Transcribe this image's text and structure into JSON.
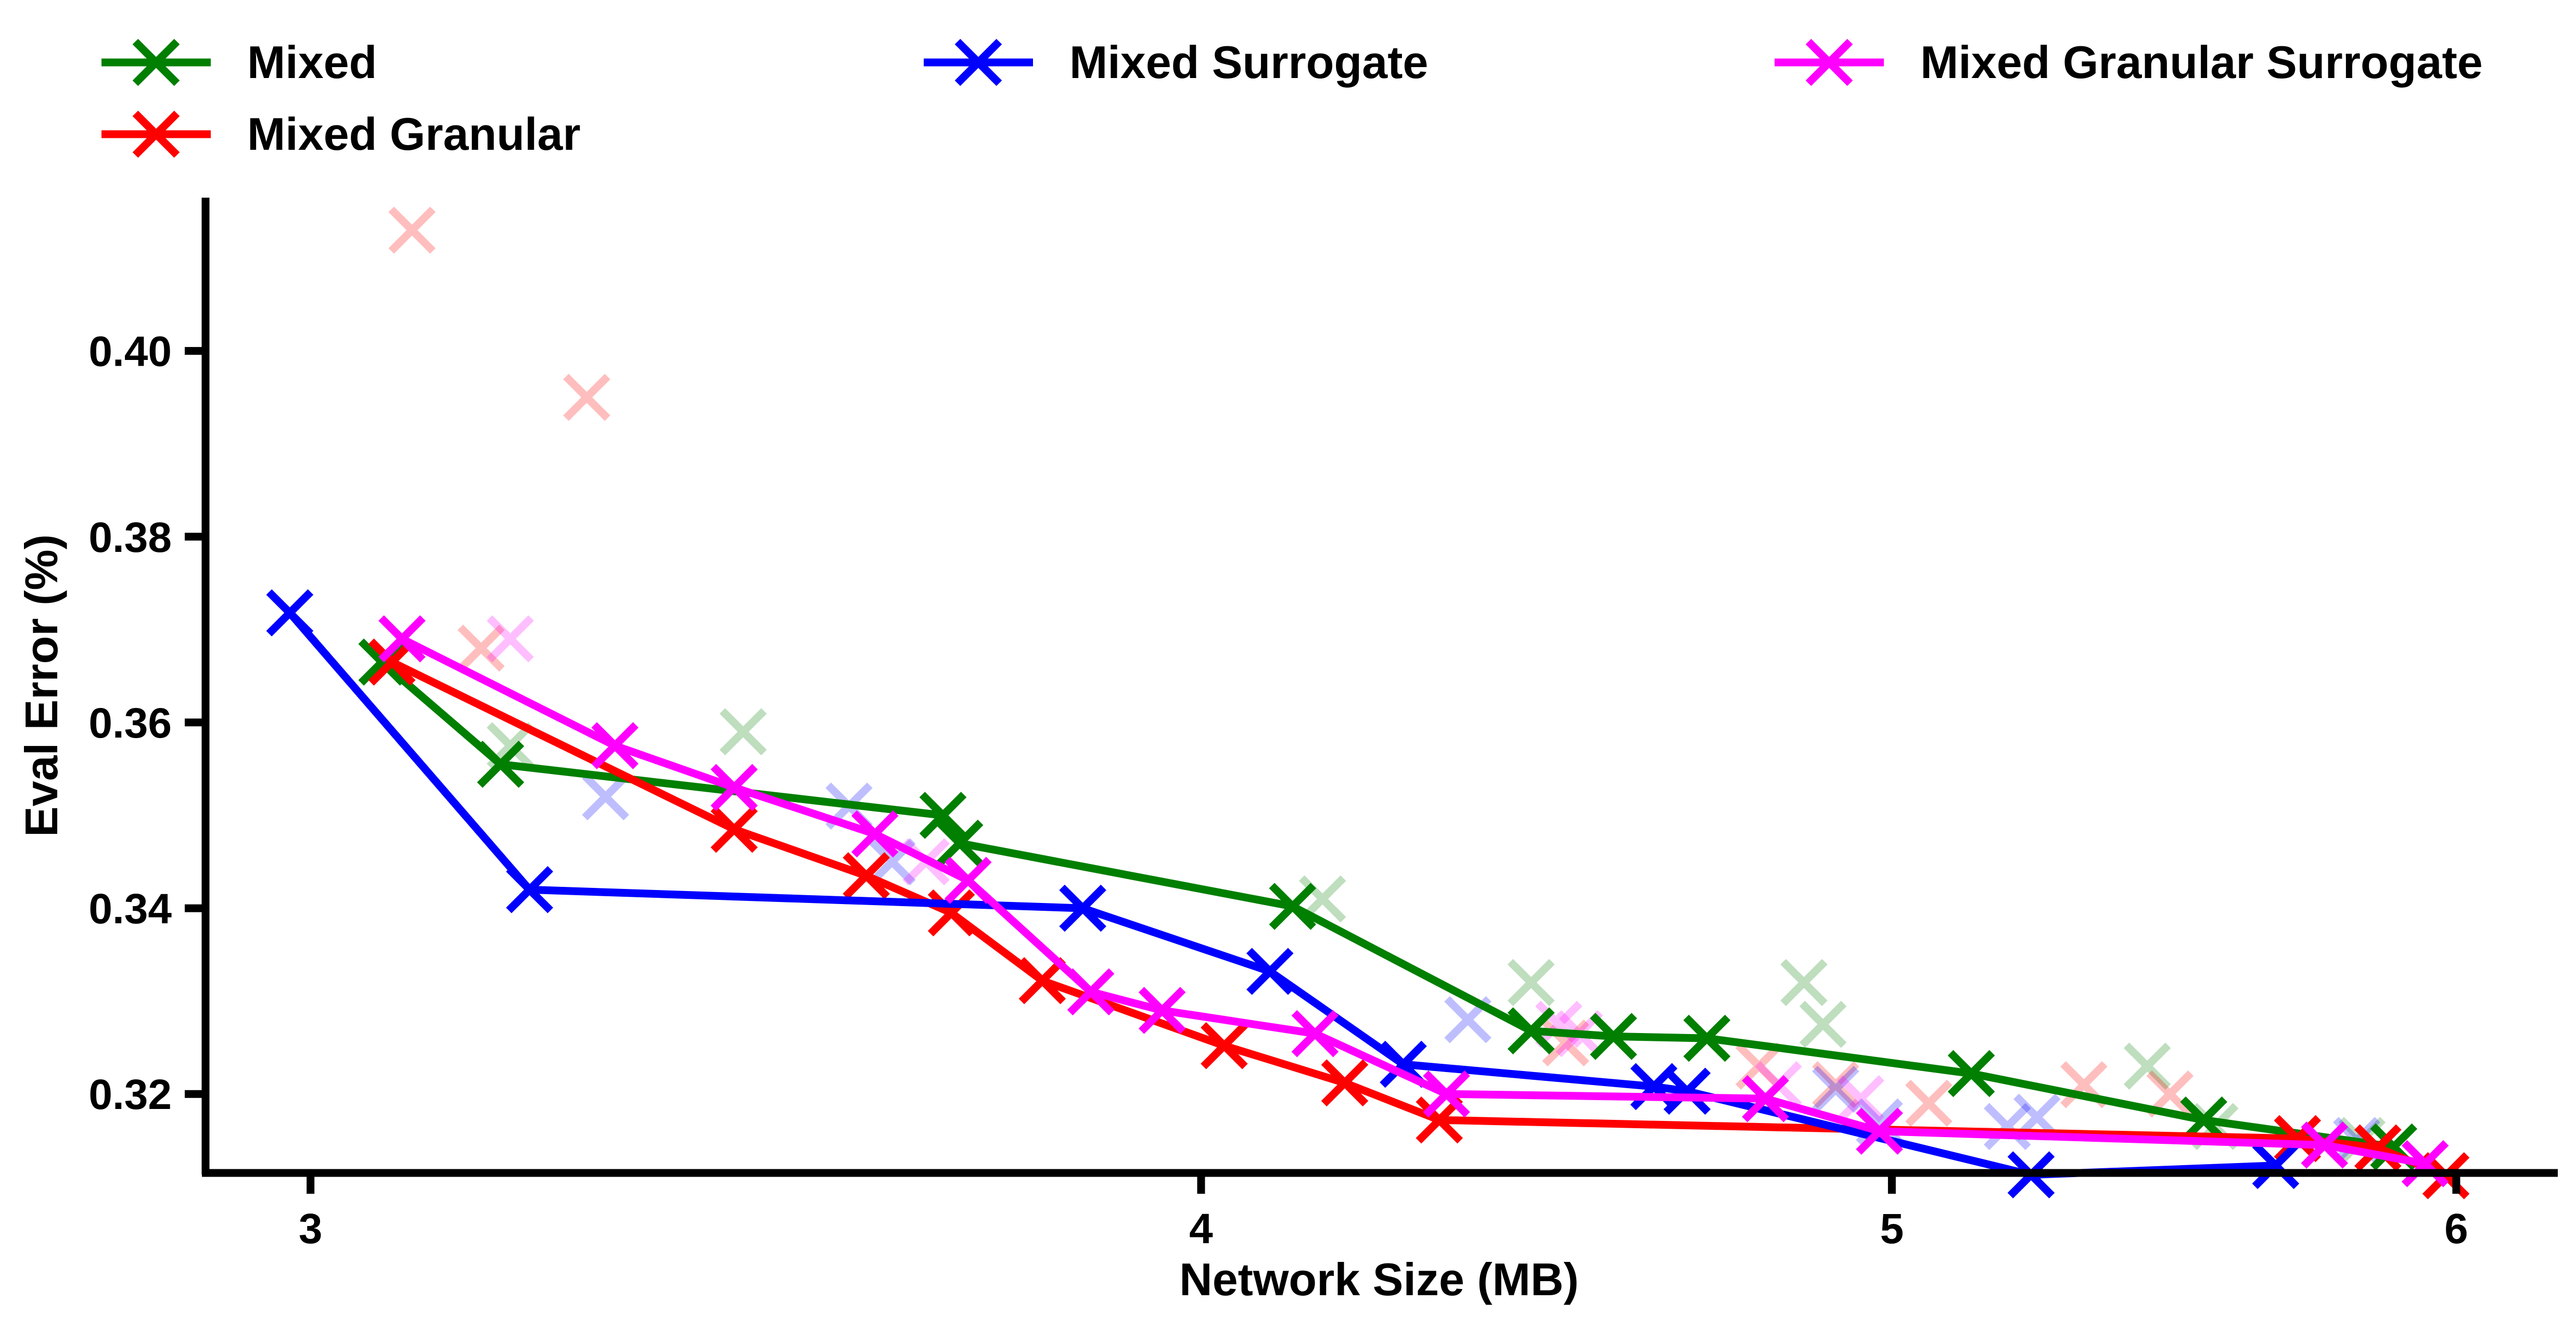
{
  "chart_data": {
    "type": "line",
    "title": "",
    "xlabel": "Network Size (MB)",
    "ylabel": "Eval Error (%)",
    "x_axis_scale": "log",
    "xlim": [
      2.9,
      6.2
    ],
    "ylim": [
      0.3115,
      0.4165
    ],
    "xticks": [
      3,
      4,
      5,
      6
    ],
    "xtick_labels": [
      "3",
      "4",
      "5",
      "6"
    ],
    "yticks": [
      0.32,
      0.34,
      0.36,
      0.38,
      0.4
    ],
    "ytick_labels": [
      "0.32",
      "0.34",
      "0.36",
      "0.38",
      "0.40"
    ],
    "grid": false,
    "legend_position": "top",
    "series": [
      {
        "name": "Mixed",
        "color": "#007f00",
        "x": [
          3.07,
          3.19,
          3.68,
          3.7,
          4.12,
          4.45,
          4.57,
          4.71,
          5.13,
          5.53,
          5.88
        ],
        "y": [
          0.3665,
          0.3555,
          0.35,
          0.347,
          0.3402,
          0.3268,
          0.3262,
          0.326,
          0.3222,
          0.3172,
          0.3143
        ]
      },
      {
        "name": "Mixed Granular",
        "color": "#ff0000",
        "x": [
          3.08,
          3.44,
          3.59,
          3.69,
          3.8,
          4.03,
          4.19,
          4.32,
          5.7,
          5.85,
          5.98
        ],
        "y": [
          0.3665,
          0.3485,
          0.3435,
          0.3395,
          0.3322,
          0.3252,
          0.3212,
          0.3172,
          0.3152,
          0.3142,
          0.3112
        ]
      },
      {
        "name": "Mixed Surrogate",
        "color": "#0000ff",
        "x": [
          2.98,
          3.22,
          3.85,
          4.09,
          4.27,
          4.63,
          4.68,
          5.23,
          5.66
        ],
        "y": [
          0.3718,
          0.342,
          0.34,
          0.3332,
          0.3232,
          0.3208,
          0.3203,
          0.3113,
          0.3123
        ]
      },
      {
        "name": "Mixed Granular Surrogate",
        "color": "#ff00ff",
        "x": [
          3.09,
          3.31,
          3.44,
          3.6,
          3.71,
          3.86,
          3.95,
          4.15,
          4.33,
          4.8,
          4.98,
          5.75,
          5.94
        ],
        "y": [
          0.369,
          0.3575,
          0.353,
          0.348,
          0.343,
          0.331,
          0.329,
          0.3265,
          0.32,
          0.3195,
          0.316,
          0.3145,
          0.3125
        ]
      }
    ],
    "faded_points": [
      {
        "series": "Mixed",
        "x": [
          3.2,
          3.45,
          4.16,
          4.45,
          4.86,
          4.89,
          5.43,
          5.55,
          5.82
        ],
        "y": [
          0.3575,
          0.359,
          0.341,
          0.332,
          0.332,
          0.3275,
          0.323,
          0.3165,
          0.315
        ]
      },
      {
        "series": "Mixed Granular",
        "x": [
          3.1,
          3.17,
          3.28,
          4.5,
          4.79,
          4.91,
          5.06,
          5.32,
          5.47
        ],
        "y": [
          0.413,
          0.368,
          0.395,
          0.3255,
          0.323,
          0.321,
          0.319,
          0.321,
          0.32
        ]
      },
      {
        "series": "Mixed Surrogate",
        "x": [
          3.3,
          3.57,
          3.62,
          4.36,
          4.91,
          4.98,
          5.19,
          5.24,
          5.81
        ],
        "y": [
          0.352,
          0.351,
          0.345,
          0.328,
          0.3205,
          0.317,
          0.3165,
          0.3175,
          0.315
        ]
      },
      {
        "series": "Mixed Granular Surrogate",
        "x": [
          3.2,
          3.66,
          4.49,
          4.52,
          4.82,
          4.95
        ],
        "y": [
          0.369,
          0.345,
          0.3275,
          0.3265,
          0.321,
          0.3195
        ]
      }
    ]
  }
}
